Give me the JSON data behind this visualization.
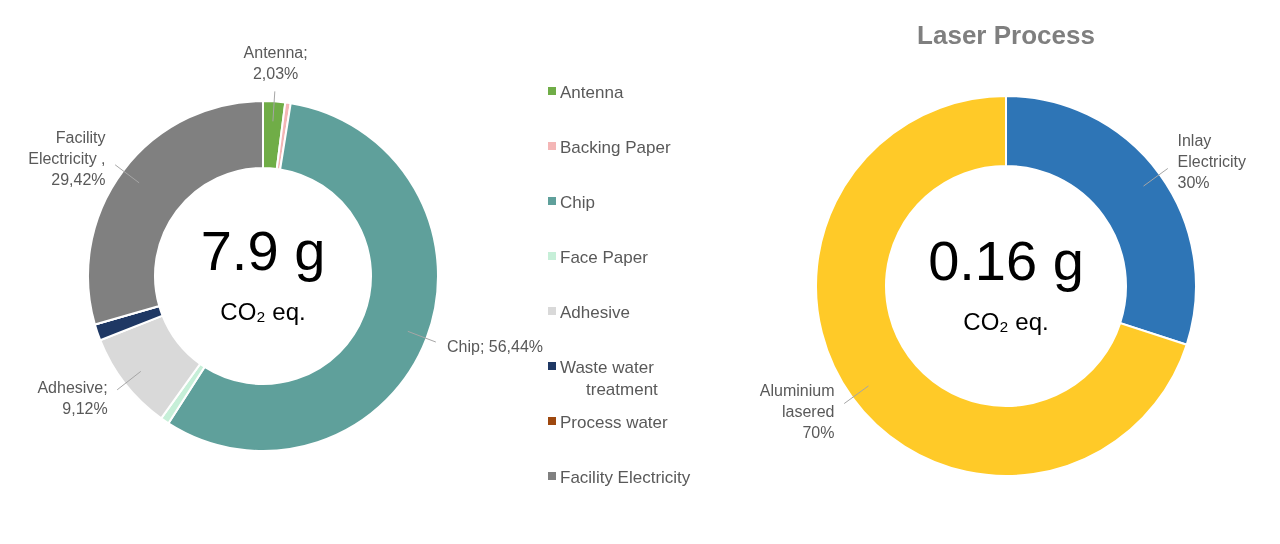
{
  "chart_data": [
    {
      "type": "donut",
      "categories": [
        "Antenna",
        "Backing Paper",
        "Chip",
        "Face Paper",
        "Adhesive",
        "Waste water treatment",
        "Process water",
        "Facility Electricity"
      ],
      "values": [
        2.03,
        0.5,
        56.44,
        0.8,
        9.12,
        1.5,
        null,
        29.42
      ],
      "colors": [
        "#70ad47",
        "#f4b6b6",
        "#5fa09b",
        "#c6efd8",
        "#d9d9d9",
        "#1f3864",
        "#9e480e",
        "#808080"
      ],
      "value_labels": [
        "Antenna;\n2,03%",
        null,
        "Chip; 56,44%",
        null,
        "Adhesive;\n9,12%",
        null,
        null,
        "Facility\nElectricity ,\n29,42%"
      ],
      "annotations": [
        "7.9 g",
        "CO₂ eq."
      ],
      "legend": "right"
    },
    {
      "type": "donut",
      "title": "Laser Process",
      "categories": [
        "Inlay Electricity",
        "Aluminium lasered"
      ],
      "values": [
        30,
        70
      ],
      "colors": [
        "#2e75b6",
        "#ffca28"
      ],
      "value_labels": [
        "30%",
        "70%"
      ],
      "annotations": [
        "0.16 g",
        "CO₂ eq."
      ]
    }
  ]
}
